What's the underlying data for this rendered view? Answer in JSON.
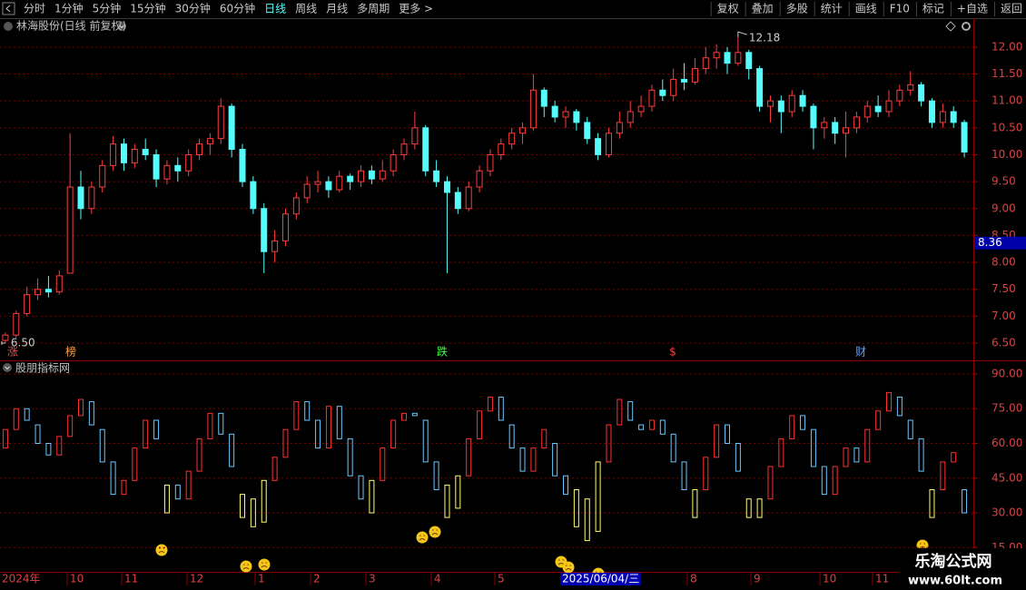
{
  "toolbar": {
    "periods": [
      "分时",
      "1分钟",
      "5分钟",
      "15分钟",
      "30分钟",
      "60分钟",
      "日线",
      "周线",
      "月线",
      "多周期",
      "更多 >"
    ],
    "active": "日线",
    "buttons": [
      "复权",
      "叠加",
      "多股",
      "统计",
      "画线",
      "F10",
      "标记",
      "+自选",
      "返回"
    ]
  },
  "chart_data": [
    {
      "type": "candlestick",
      "title": "林海股份(日线 前复权)",
      "up_color": "#ff3c3c",
      "down_color": "#54fcfc",
      "grid": true,
      "ylim": [
        6.18,
        12.2
      ],
      "yticks": [
        {
          "value": 6.5,
          "label": "6.50"
        },
        {
          "value": 7,
          "label": "7.00"
        },
        {
          "value": 7.5,
          "label": "7.50"
        },
        {
          "value": 8,
          "label": "8.00"
        },
        {
          "value": 8.5,
          "label": "8.50"
        },
        {
          "value": 9,
          "label": "9.00"
        },
        {
          "value": 9.5,
          "label": "9.50"
        },
        {
          "value": 10,
          "label": "10.00"
        },
        {
          "value": 10.5,
          "label": "10.50"
        },
        {
          "value": 11,
          "label": "11.00"
        },
        {
          "value": 11.5,
          "label": "11.50"
        },
        {
          "value": 12,
          "label": "12.00"
        }
      ],
      "high_label": "12.18",
      "low_label": "6.50",
      "cursor_price": {
        "value": 8.36,
        "label": "8.36"
      },
      "events": [
        "涨",
        "榜",
        "跌",
        "$",
        "财"
      ],
      "ohlc": [
        [
          6.55,
          6.7,
          6.5,
          6.65
        ],
        [
          6.65,
          7.1,
          6.6,
          7.05
        ],
        [
          7.05,
          7.55,
          7,
          7.4
        ],
        [
          7.4,
          7.7,
          7.3,
          7.5
        ],
        [
          7.5,
          7.75,
          7.35,
          7.45
        ],
        [
          7.45,
          7.85,
          7.4,
          7.75
        ],
        [
          7.8,
          10.4,
          7.8,
          9.4
        ],
        [
          9.4,
          9.7,
          8.8,
          9
        ],
        [
          9,
          9.5,
          8.9,
          9.4
        ],
        [
          9.4,
          9.9,
          9.3,
          9.8
        ],
        [
          9.8,
          10.35,
          9.7,
          10.2
        ],
        [
          10.2,
          10.3,
          9.7,
          9.85
        ],
        [
          9.85,
          10.2,
          9.75,
          10.1
        ],
        [
          10.1,
          10.3,
          9.9,
          10
        ],
        [
          10,
          10.1,
          9.4,
          9.55
        ],
        [
          9.55,
          9.9,
          9.45,
          9.8
        ],
        [
          9.8,
          9.95,
          9.5,
          9.7
        ],
        [
          9.7,
          10.1,
          9.6,
          10
        ],
        [
          10,
          10.3,
          9.9,
          10.2
        ],
        [
          10.2,
          10.4,
          10,
          10.3
        ],
        [
          10.3,
          11.05,
          10.2,
          10.9
        ],
        [
          10.9,
          10.95,
          9.95,
          10.1
        ],
        [
          10.1,
          10.2,
          9.4,
          9.5
        ],
        [
          9.5,
          9.6,
          8.9,
          9
        ],
        [
          9,
          9.1,
          7.8,
          8.2
        ],
        [
          8.2,
          8.6,
          8,
          8.4
        ],
        [
          8.4,
          9,
          8.3,
          8.9
        ],
        [
          8.9,
          9.3,
          8.8,
          9.2
        ],
        [
          9.2,
          9.6,
          9.1,
          9.45
        ],
        [
          9.45,
          9.7,
          9.3,
          9.5
        ],
        [
          9.5,
          9.6,
          9.2,
          9.35
        ],
        [
          9.35,
          9.7,
          9.3,
          9.6
        ],
        [
          9.6,
          9.65,
          9.35,
          9.5
        ],
        [
          9.5,
          9.8,
          9.4,
          9.7
        ],
        [
          9.7,
          9.8,
          9.45,
          9.55
        ],
        [
          9.55,
          9.9,
          9.5,
          9.7
        ],
        [
          9.7,
          10.1,
          9.6,
          10
        ],
        [
          10,
          10.3,
          9.9,
          10.2
        ],
        [
          10.2,
          10.8,
          10.1,
          10.5
        ],
        [
          10.5,
          10.55,
          9.6,
          9.7
        ],
        [
          9.7,
          9.9,
          9.4,
          9.5
        ],
        [
          9.5,
          9.6,
          7.8,
          9.3
        ],
        [
          9.3,
          9.4,
          8.9,
          9
        ],
        [
          9,
          9.5,
          8.95,
          9.4
        ],
        [
          9.4,
          9.8,
          9.3,
          9.7
        ],
        [
          9.7,
          10.1,
          9.6,
          10
        ],
        [
          10,
          10.3,
          9.9,
          10.2
        ],
        [
          10.2,
          10.5,
          10.1,
          10.4
        ],
        [
          10.4,
          10.6,
          10.2,
          10.5
        ],
        [
          10.5,
          11.5,
          10.45,
          11.2
        ],
        [
          11.2,
          11.25,
          10.7,
          10.9
        ],
        [
          10.9,
          11,
          10.6,
          10.7
        ],
        [
          10.7,
          10.9,
          10.5,
          10.8
        ],
        [
          10.8,
          10.85,
          10.45,
          10.6
        ],
        [
          10.6,
          10.7,
          10.2,
          10.3
        ],
        [
          10.3,
          10.4,
          9.9,
          10
        ],
        [
          10,
          10.5,
          9.95,
          10.4
        ],
        [
          10.4,
          10.8,
          10.3,
          10.6
        ],
        [
          10.6,
          11,
          10.5,
          10.8
        ],
        [
          10.8,
          11.1,
          10.7,
          10.9
        ],
        [
          10.9,
          11.3,
          10.8,
          11.2
        ],
        [
          11.2,
          11.4,
          11,
          11.1
        ],
        [
          11.1,
          11.6,
          11,
          11.4
        ],
        [
          11.4,
          11.7,
          11.2,
          11.35
        ],
        [
          11.35,
          11.8,
          11.3,
          11.6
        ],
        [
          11.6,
          12,
          11.5,
          11.8
        ],
        [
          11.8,
          12.05,
          11.6,
          11.9
        ],
        [
          11.9,
          12,
          11.5,
          11.7
        ],
        [
          11.7,
          12.18,
          11.65,
          11.9
        ],
        [
          11.9,
          11.95,
          11.4,
          11.6
        ],
        [
          11.6,
          11.65,
          10.8,
          10.9
        ],
        [
          10.9,
          11.1,
          10.6,
          11
        ],
        [
          11,
          11.1,
          10.4,
          10.8
        ],
        [
          10.8,
          11.2,
          10.7,
          11.1
        ],
        [
          11.1,
          11.2,
          10.8,
          10.9
        ],
        [
          10.9,
          10.95,
          10.1,
          10.5
        ],
        [
          10.5,
          10.7,
          10.3,
          10.6
        ],
        [
          10.6,
          10.7,
          10.2,
          10.4
        ],
        [
          10.4,
          10.8,
          9.95,
          10.5
        ],
        [
          10.5,
          10.8,
          10.4,
          10.7
        ],
        [
          10.7,
          11,
          10.6,
          10.9
        ],
        [
          10.9,
          11.1,
          10.7,
          10.8
        ],
        [
          10.8,
          11.2,
          10.7,
          11
        ],
        [
          11,
          11.3,
          10.9,
          11.2
        ],
        [
          11.2,
          11.55,
          11.1,
          11.3
        ],
        [
          11.3,
          11.35,
          10.9,
          11
        ],
        [
          11,
          11.05,
          10.5,
          10.6
        ],
        [
          10.6,
          10.95,
          10.5,
          10.8
        ],
        [
          10.8,
          10.9,
          10.5,
          10.6
        ],
        [
          10.6,
          10.65,
          9.95,
          10.05
        ]
      ]
    },
    {
      "type": "indicator",
      "title": "股朋指标网",
      "up_color": "#ff3030",
      "down_color": "#6cc8ff",
      "signal_color": "#ffff70",
      "grid": true,
      "ylim": [
        5.3,
        94.7
      ],
      "yticks": [
        {
          "value": 15,
          "label": "15.00"
        },
        {
          "value": 30,
          "label": "30.00"
        },
        {
          "value": 45,
          "label": "45.00"
        },
        {
          "value": 60,
          "label": "60.00"
        },
        {
          "value": 75,
          "label": "75.00"
        },
        {
          "value": 90,
          "label": "90.00"
        }
      ],
      "values": [
        [
          58,
          66
        ],
        [
          66,
          75
        ],
        [
          75,
          70
        ],
        [
          68,
          60
        ],
        [
          60,
          55
        ],
        [
          55,
          63
        ],
        [
          63,
          72
        ],
        [
          72,
          79
        ],
        [
          78,
          68
        ],
        [
          66,
          52
        ],
        [
          52,
          38
        ],
        [
          38,
          44
        ],
        [
          44,
          58
        ],
        [
          58,
          70
        ],
        [
          70,
          62
        ],
        null,
        [
          42,
          36
        ],
        [
          36,
          48
        ],
        [
          48,
          62
        ],
        [
          62,
          73
        ],
        [
          73,
          64
        ],
        [
          64,
          50
        ],
        null,
        null,
        null,
        [
          44,
          54
        ],
        [
          54,
          66
        ],
        [
          66,
          78
        ],
        [
          78,
          70
        ],
        [
          70,
          58
        ],
        [
          58,
          76
        ],
        [
          76,
          62
        ],
        [
          62,
          46
        ],
        [
          46,
          36
        ],
        null,
        [
          44,
          58
        ],
        [
          58,
          70
        ],
        [
          70,
          73
        ],
        [
          73,
          72
        ],
        [
          70,
          52
        ],
        [
          52,
          40
        ],
        null,
        null,
        [
          46,
          62
        ],
        [
          62,
          74
        ],
        [
          74,
          80
        ],
        [
          80,
          70
        ],
        [
          68,
          58
        ],
        [
          58,
          48
        ],
        [
          48,
          58
        ],
        [
          58,
          66
        ],
        [
          60,
          46
        ],
        [
          46,
          38
        ],
        null,
        null,
        null,
        [
          52,
          68
        ],
        [
          68,
          79
        ],
        [
          78,
          70
        ],
        [
          68,
          66
        ],
        [
          66,
          70
        ],
        [
          70,
          64
        ],
        [
          64,
          52
        ],
        [
          52,
          40
        ],
        null,
        [
          40,
          54
        ],
        [
          54,
          68
        ],
        [
          68,
          60
        ],
        [
          60,
          48
        ],
        null,
        null,
        [
          36,
          50
        ],
        [
          50,
          62
        ],
        [
          62,
          72
        ],
        [
          72,
          66
        ],
        [
          66,
          50
        ],
        [
          50,
          38
        ],
        [
          38,
          50
        ],
        [
          50,
          58
        ],
        [
          58,
          52
        ],
        [
          52,
          66
        ],
        [
          66,
          74
        ],
        [
          74,
          82
        ],
        [
          80,
          72
        ],
        [
          70,
          62
        ],
        [
          62,
          48
        ],
        null,
        [
          40,
          52
        ],
        [
          52,
          56
        ],
        [
          40,
          30
        ]
      ],
      "signal_values": [
        null,
        null,
        null,
        null,
        null,
        null,
        null,
        null,
        null,
        null,
        null,
        null,
        null,
        null,
        null,
        [
          30,
          42
        ],
        null,
        null,
        null,
        null,
        null,
        null,
        [
          28,
          38
        ],
        [
          24,
          36
        ],
        [
          26,
          44
        ],
        null,
        null,
        null,
        null,
        null,
        null,
        null,
        null,
        null,
        [
          30,
          44
        ],
        null,
        null,
        null,
        null,
        null,
        null,
        [
          28,
          42
        ],
        [
          32,
          46
        ],
        null,
        null,
        null,
        null,
        null,
        null,
        null,
        null,
        null,
        null,
        [
          24,
          40
        ],
        [
          18,
          36
        ],
        [
          22,
          52
        ],
        null,
        null,
        null,
        null,
        null,
        null,
        null,
        null,
        [
          28,
          40
        ],
        null,
        null,
        null,
        null,
        [
          28,
          36
        ],
        [
          28,
          36
        ],
        null,
        null,
        null,
        null,
        null,
        null,
        null,
        null,
        null,
        null,
        null,
        null,
        null,
        null,
        null,
        [
          28,
          40
        ],
        null,
        null,
        null
      ]
    }
  ],
  "date_axis": [
    "2024年",
    "10",
    "11",
    "12",
    "1",
    "2",
    "3",
    "4",
    "5",
    "2025/06/04/三",
    "8",
    "9",
    "10",
    "11"
  ],
  "watermark": {
    "title": "乐淘公式网",
    "url": "www.60lt.com"
  }
}
